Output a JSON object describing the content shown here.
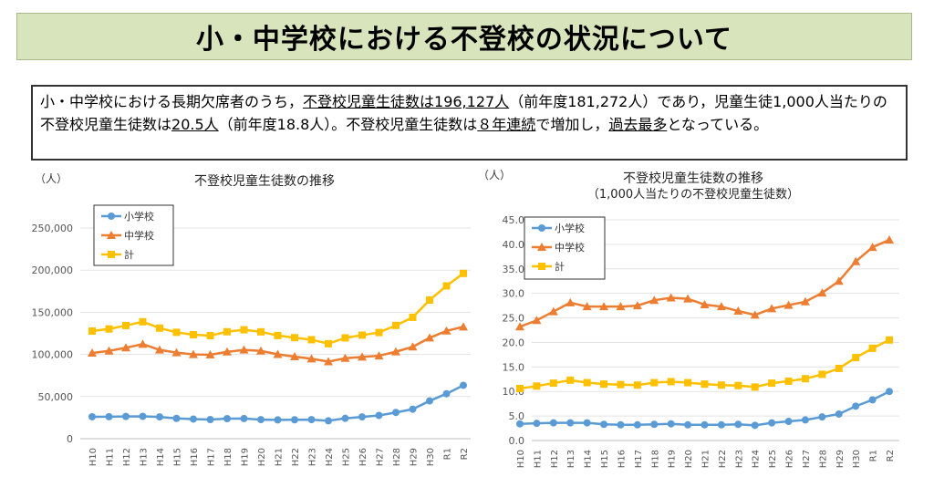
{
  "header": {
    "title": "小・中学校における不登校の状況について"
  },
  "summary": {
    "parts": [
      {
        "text": "小・中学校における長期欠席者のうち，",
        "underline": false
      },
      {
        "text": "不登校児童生徒数は196,127人",
        "underline": true
      },
      {
        "text": "（前年度181,272人）であり，児童生徒1,000人当たりの不登校児童生徒数は",
        "underline": false
      },
      {
        "text": "20.5人",
        "underline": true
      },
      {
        "text": "（前年度18.8人）。不登校児童生徒数は",
        "underline": false
      },
      {
        "text": "８年連続",
        "underline": true
      },
      {
        "text": "で増加し，",
        "underline": false
      },
      {
        "text": "過去最多",
        "underline": true
      },
      {
        "text": "となっている。",
        "underline": false
      }
    ]
  },
  "colors": {
    "elementary": "#5b9bd5",
    "junior_high": "#ed7d31",
    "total": "#ffc000",
    "banner": "#d8e4bc"
  },
  "chart_data": [
    {
      "type": "line",
      "title": "不登校児童生徒数の推移",
      "subtitle": "",
      "ylabel": "（人）",
      "ylim": [
        0,
        250000
      ],
      "yticks": [
        "0",
        "50,000",
        "100,000",
        "150,000",
        "200,000",
        "250,000"
      ],
      "grid": true,
      "legend": "top-left",
      "categories": [
        "H10",
        "H11",
        "H12",
        "H13",
        "H14",
        "H15",
        "H16",
        "H17",
        "H18",
        "H19",
        "H20",
        "H21",
        "H22",
        "H23",
        "H24",
        "H25",
        "H26",
        "H27",
        "H28",
        "H29",
        "H30",
        "R1",
        "R2"
      ],
      "series": [
        {
          "name": "小学校",
          "marker": "circle",
          "color": "#5b9bd5",
          "values": [
            26017,
            26047,
            26373,
            26511,
            25869,
            24077,
            23318,
            22709,
            23825,
            23927,
            22652,
            22327,
            22463,
            22622,
            21243,
            24175,
            25864,
            27583,
            31151,
            35032,
            44841,
            53350,
            63350
          ]
        },
        {
          "name": "中学校",
          "marker": "triangle",
          "color": "#ed7d31",
          "values": [
            101675,
            104180,
            107913,
            112211,
            105383,
            102149,
            100040,
            99578,
            103069,
            105328,
            104153,
            100105,
            97428,
            94836,
            91446,
            95442,
            97033,
            98408,
            103235,
            108999,
            119687,
            127922,
            132777
          ]
        },
        {
          "name": "計",
          "marker": "square",
          "color": "#ffc000",
          "values": [
            127692,
            130227,
            134286,
            138722,
            131252,
            126226,
            123358,
            122287,
            126894,
            129255,
            126805,
            122432,
            119891,
            117458,
            112689,
            119617,
            122897,
            125991,
            134386,
            144031,
            164528,
            181272,
            196127
          ]
        }
      ]
    },
    {
      "type": "line",
      "title": "不登校児童生徒数の推移",
      "subtitle": "（1,000人当たりの不登校児童生徒数）",
      "ylabel": "（人）",
      "ylim": [
        0,
        45
      ],
      "yticks": [
        "0.0",
        "5.0",
        "10.0",
        "15.0",
        "20.0",
        "25.0",
        "30.0",
        "35.0",
        "40.0",
        "45.0"
      ],
      "grid": true,
      "legend": "top-left",
      "categories": [
        "H10",
        "H11",
        "H12",
        "H13",
        "H14",
        "H15",
        "H16",
        "H17",
        "H18",
        "H19",
        "H20",
        "H21",
        "H22",
        "H23",
        "H24",
        "H25",
        "H26",
        "H27",
        "H28",
        "H29",
        "H30",
        "R1",
        "R2"
      ],
      "series": [
        {
          "name": "小学校",
          "marker": "circle",
          "color": "#5b9bd5",
          "values": [
            3.4,
            3.5,
            3.6,
            3.6,
            3.6,
            3.3,
            3.2,
            3.2,
            3.3,
            3.4,
            3.2,
            3.2,
            3.2,
            3.3,
            3.1,
            3.6,
            3.9,
            4.2,
            4.8,
            5.4,
            7.0,
            8.3,
            10.0
          ]
        },
        {
          "name": "中学校",
          "marker": "triangle",
          "color": "#ed7d31",
          "values": [
            23.2,
            24.5,
            26.3,
            28.1,
            27.3,
            27.3,
            27.3,
            27.5,
            28.6,
            29.1,
            28.9,
            27.7,
            27.3,
            26.4,
            25.6,
            26.9,
            27.6,
            28.3,
            30.1,
            32.5,
            36.5,
            39.4,
            40.9
          ]
        },
        {
          "name": "計",
          "marker": "square",
          "color": "#ffc000",
          "values": [
            10.6,
            11.1,
            11.7,
            12.3,
            11.8,
            11.5,
            11.4,
            11.3,
            11.8,
            12.0,
            11.8,
            11.5,
            11.3,
            11.2,
            10.9,
            11.7,
            12.1,
            12.6,
            13.5,
            14.7,
            16.9,
            18.8,
            20.5
          ]
        }
      ]
    }
  ]
}
